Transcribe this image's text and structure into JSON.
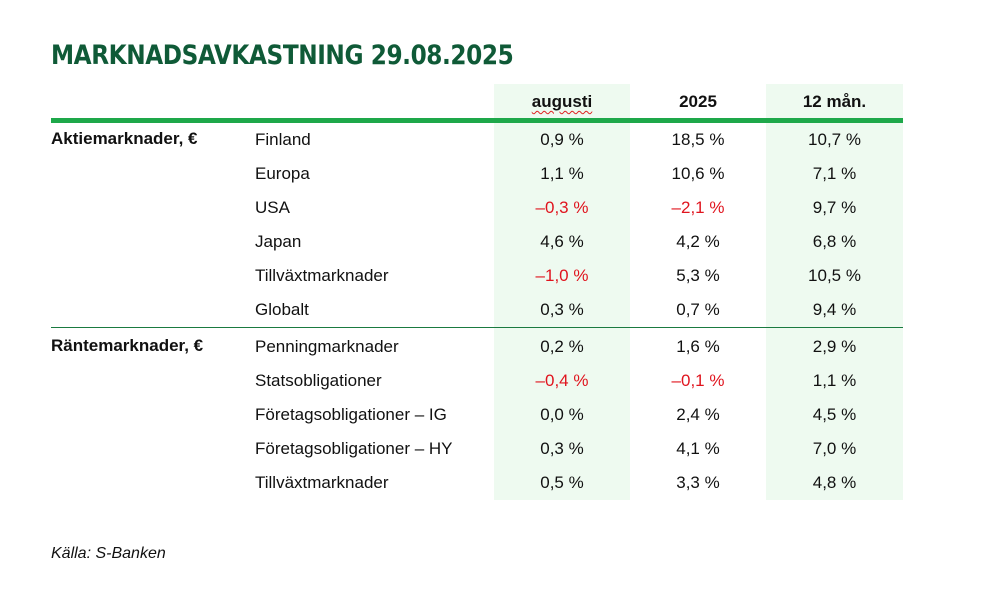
{
  "title": "MARKNADSAVKASTNING 29.08.2025",
  "columns": [
    "augusti",
    "2025",
    "12 mån."
  ],
  "groups": [
    {
      "label": "Aktiemarknader, €",
      "rows": [
        {
          "name": "Finland",
          "values": [
            "0,9 %",
            "18,5 %",
            "10,7 %"
          ]
        },
        {
          "name": "Europa",
          "values": [
            "1,1 %",
            "10,6 %",
            "7,1 %"
          ]
        },
        {
          "name": "USA",
          "values": [
            "–0,3 %",
            "–2,1 %",
            "9,7 %"
          ]
        },
        {
          "name": "Japan",
          "values": [
            "4,6 %",
            "4,2 %",
            "6,8 %"
          ]
        },
        {
          "name": "Tillväxtmarknader",
          "values": [
            "–1,0 %",
            "5,3 %",
            "10,5 %"
          ]
        },
        {
          "name": "Globalt",
          "values": [
            "0,3 %",
            "0,7 %",
            "9,4 %"
          ]
        }
      ]
    },
    {
      "label": "Räntemarknader, €",
      "rows": [
        {
          "name": "Penningmarknader",
          "values": [
            "0,2 %",
            "1,6 %",
            "2,9 %"
          ]
        },
        {
          "name": "Statsobligationer",
          "values": [
            "–0,4 %",
            "–0,1 %",
            "1,1 %"
          ]
        },
        {
          "name": "Företagsobligationer – IG",
          "values": [
            "0,0 %",
            "2,4 %",
            "4,5 %"
          ]
        },
        {
          "name": "Företagsobligationer – HY",
          "values": [
            "0,3 %",
            "4,1 %",
            "7,0 %"
          ]
        },
        {
          "name": "Tillväxtmarknader",
          "values": [
            "0,5 %",
            "3,3 %",
            "4,8 %"
          ]
        }
      ]
    }
  ],
  "source": "Källa: S-Banken",
  "colors": {
    "title": "#0f5a37",
    "rule": "#1ea84a",
    "shade": "#eefaf0",
    "negative": "#e0141e"
  }
}
